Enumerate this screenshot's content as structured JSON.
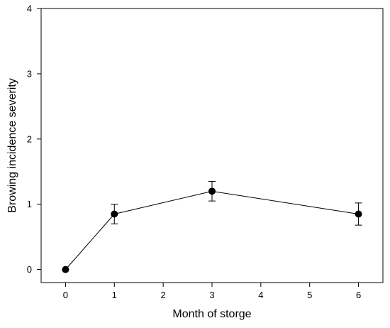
{
  "chart_data": {
    "type": "line",
    "title": "",
    "xlabel": "Month of storge",
    "ylabel": "Browing incidence severity",
    "xlim": [
      -0.5,
      6.5
    ],
    "ylim": [
      -0.2,
      4
    ],
    "xticks": [
      "0",
      "1",
      "2",
      "3",
      "4",
      "5",
      "6"
    ],
    "yticks": [
      "0",
      "1",
      "2",
      "3",
      "4"
    ],
    "grid": false,
    "series": [
      {
        "x": [
          0,
          1,
          3,
          6
        ],
        "y": [
          0,
          0.85,
          1.2,
          0.85
        ],
        "error": [
          0,
          0.15,
          0.15,
          0.17
        ],
        "color": "#000000",
        "marker": "circle"
      }
    ]
  }
}
